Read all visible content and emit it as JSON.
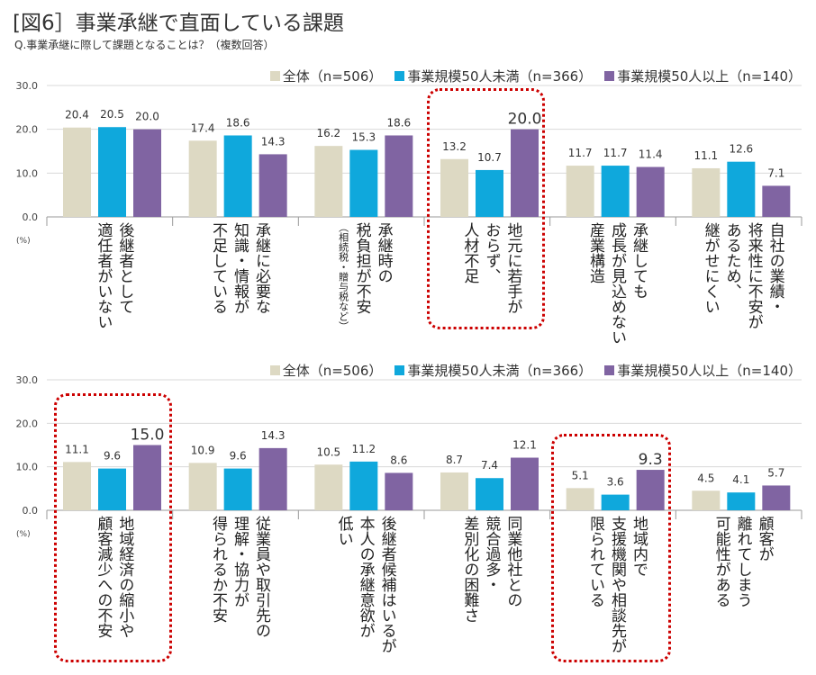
{
  "title": "[図6］事業承継で直面している課題",
  "subtitle": "Q.事業承継に際して課題となることは？（複数回答）",
  "colors": {
    "all": "#DDD9C3",
    "under50": "#0FA8DC",
    "over50": "#8064A2",
    "highlight": "#CC0000"
  },
  "chart_data": [
    {
      "type": "bar",
      "ylim": [
        0,
        30
      ],
      "yticks": [
        "0.0",
        "10.0",
        "20.0",
        "30.0"
      ],
      "unit": "(%)",
      "grid": true,
      "legend_position": "top-right",
      "series_names": [
        "全体（n=506）",
        "事業規模50人未満（n=366）",
        "事業規模50人以上（n=140）"
      ],
      "categories": [
        [
          "後継者として",
          "適任者がいない"
        ],
        [
          "承継に必要な",
          "知識・情報が",
          "不足している"
        ],
        [
          "承継時の",
          "税負担が不安",
          "（相続税・贈与税など）"
        ],
        [
          "地元に若手が",
          "おらず、",
          "人材不足"
        ],
        [
          "承継しても",
          "成長が見込めない",
          "産業構造"
        ],
        [
          "自社の業績・",
          "将来性に不安が",
          "あるため、",
          "継がせにくい"
        ]
      ],
      "series": [
        {
          "name": "全体（n=506）",
          "values": [
            20.4,
            17.4,
            16.2,
            13.2,
            11.7,
            11.1
          ]
        },
        {
          "name": "事業規模50人未満（n=366）",
          "values": [
            20.5,
            18.6,
            15.3,
            10.7,
            11.7,
            12.6
          ]
        },
        {
          "name": "事業規模50人以上（n=140）",
          "values": [
            20.0,
            14.3,
            18.6,
            20.0,
            11.4,
            7.1
          ]
        }
      ],
      "highlighted_categories": [
        3
      ]
    },
    {
      "type": "bar",
      "ylim": [
        0,
        30
      ],
      "yticks": [
        "0.0",
        "10.0",
        "20.0",
        "30.0"
      ],
      "unit": "(%)",
      "grid": true,
      "legend_position": "top-right",
      "series_names": [
        "全体（n=506）",
        "事業規模50人未満（n=366）",
        "事業規模50人以上（n=140）"
      ],
      "categories": [
        [
          "地域経済の縮小や",
          "顧客減少への不安"
        ],
        [
          "従業員や取引先の",
          "理解・協力が",
          "得られるか不安"
        ],
        [
          "後継者候補はいるが",
          "本人の承継意欲が",
          "低い"
        ],
        [
          "同業他社との",
          "競合過多・",
          "差別化の困難さ"
        ],
        [
          "地域内で",
          "支援機関や相談先が",
          "限られている"
        ],
        [
          "顧客が",
          "離れてしまう",
          "可能性がある"
        ]
      ],
      "series": [
        {
          "name": "全体（n=506）",
          "values": [
            11.1,
            10.9,
            10.5,
            8.7,
            5.1,
            4.5
          ]
        },
        {
          "name": "事業規模50人未満（n=366）",
          "values": [
            9.6,
            9.6,
            11.2,
            7.4,
            3.6,
            4.1
          ]
        },
        {
          "name": "事業規模50人以上（n=140）",
          "values": [
            15.0,
            14.3,
            8.6,
            12.1,
            9.3,
            5.7
          ]
        }
      ],
      "highlighted_categories": [
        0,
        4
      ]
    }
  ]
}
